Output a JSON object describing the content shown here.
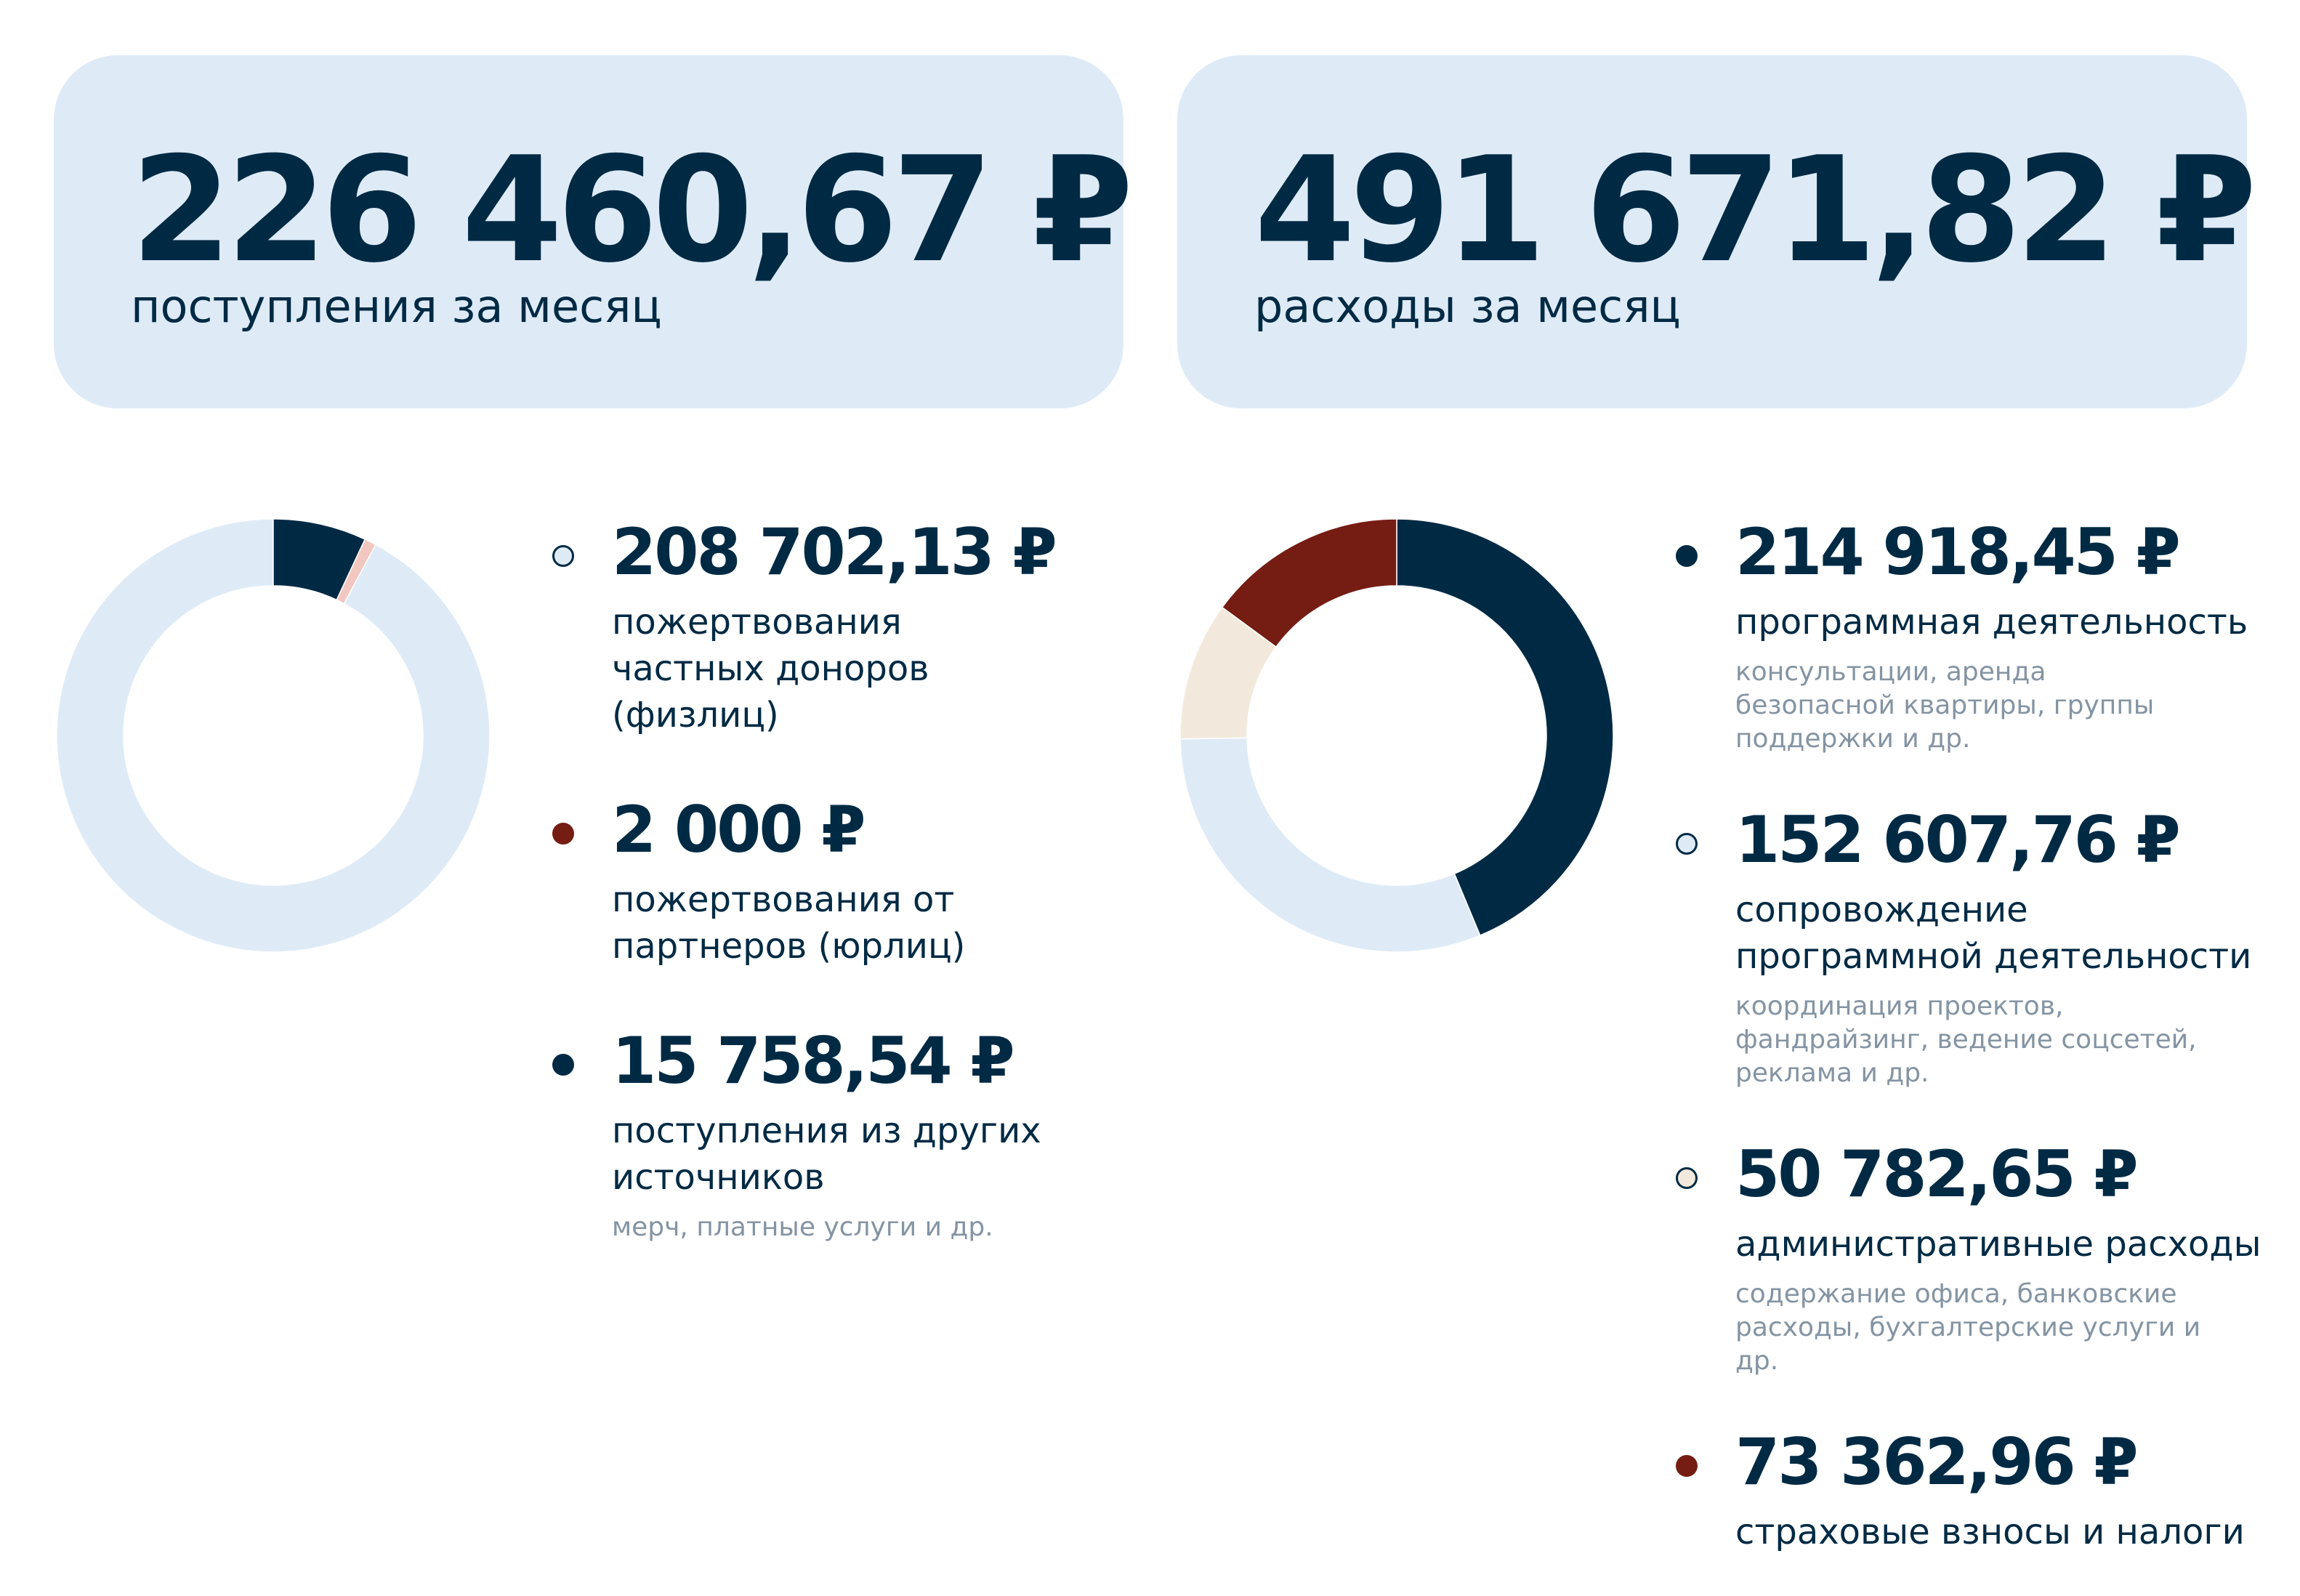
{
  "summary": {
    "income": {
      "amount": "226 460,67 ₽",
      "label": "поступления за месяц"
    },
    "expense": {
      "amount": "491 671,82 ₽",
      "label": "расходы за месяц"
    }
  },
  "colors": {
    "navy": "#002a44",
    "light_blue": "#deebf7",
    "dark_red": "#751c13",
    "beige": "#f2e9dc",
    "pink": "#f2c7c0",
    "muted_text": "#8494a3"
  },
  "legend": {
    "income": [
      {
        "value": "208 702,13 ₽",
        "label": "пожертвования частных доноров (физлиц)",
        "note": "",
        "color": "#deebf7"
      },
      {
        "value": "2 000 ₽",
        "label": "пожертвования от партнеров (юрлиц)",
        "note": "",
        "color": "#751c13"
      },
      {
        "value": "15 758,54 ₽",
        "label": "поступления из других источников",
        "note": "мерч, платные услуги и др.",
        "color": "#002a44"
      }
    ],
    "expense": [
      {
        "value": "214 918,45 ₽",
        "label": "программная деятельность",
        "note": "консультации, аренда безопасной квартиры, группы поддержки и др.",
        "color": "#002a44"
      },
      {
        "value": "152 607,76 ₽",
        "label": "сопровождение программной деятельности",
        "note": "координация проектов, фандрайзинг, ведение соцсетей, реклама и др.",
        "color": "#deebf7"
      },
      {
        "value": "50 782,65 ₽",
        "label": "административные расходы",
        "note": "содержание офиса, банковские расходы, бухгалтерские услуги и др.",
        "color": "#f2e9dc"
      },
      {
        "value": "73 362,96 ₽",
        "label": "страховые взносы и налоги",
        "note": "",
        "color": "#751c13"
      }
    ]
  },
  "chart_data": [
    {
      "type": "pie",
      "title": "",
      "categories": [
        "пожертвования частных доноров (физлиц)",
        "пожертвования от партнеров (юрлиц)",
        "поступления из других источников"
      ],
      "values": [
        208702.13,
        2000,
        15758.54
      ],
      "colors": [
        "#deebf7",
        "#f2c7c0",
        "#002a44"
      ],
      "donut": true,
      "legend": "right"
    },
    {
      "type": "pie",
      "title": "",
      "categories": [
        "программная деятельность",
        "сопровождение программной деятельности",
        "административные расходы",
        "страховые взносы и налоги"
      ],
      "values": [
        214918.45,
        152607.76,
        50782.65,
        73362.96
      ],
      "colors": [
        "#002a44",
        "#deebf7",
        "#f2e9dc",
        "#751c13"
      ],
      "donut": true,
      "legend": "right"
    }
  ]
}
